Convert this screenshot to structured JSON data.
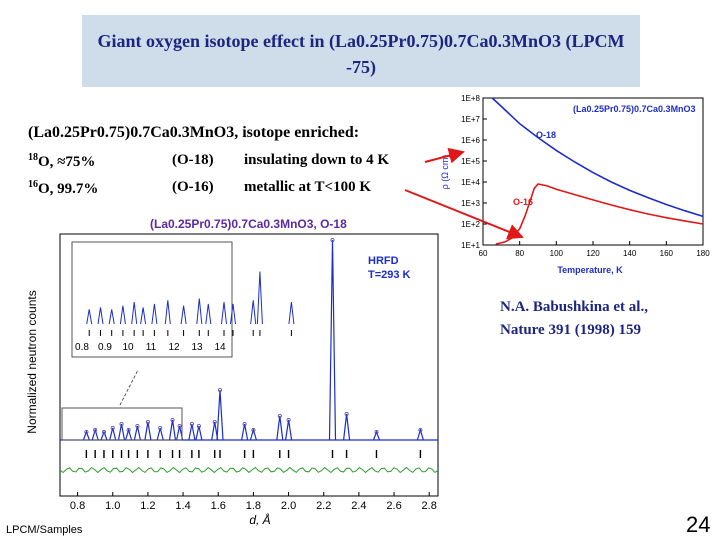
{
  "slide": {
    "title": "Giant oxygen isotope effect in (La0.25Pr0.75)0.7Ca0.3MnO3 (LPCM -75)",
    "compound_line": "(La0.25Pr0.75)0.7Ca0.3MnO3, isotope enriched:",
    "rows": [
      {
        "isotope_mass": "18",
        "isotope_element": "O,",
        "enrichment": "≈75%",
        "label": "(O-18)",
        "behavior": "insulating down to 4 K"
      },
      {
        "isotope_mass": "16",
        "isotope_element": "O,",
        "enrichment": "99.7%",
        "label": "(O-16)",
        "behavior": "metallic at T<100 K"
      }
    ],
    "reference": [
      "N.A. Babushkina et al.,",
      "Nature 391 (1998) 159"
    ],
    "footer": "LPCM/Samples",
    "page_number": "24"
  },
  "chart_data": [
    {
      "type": "line",
      "title": "(La0.25Pr0.75)0.7Ca0.3MnO3",
      "xlabel": "Temperature, K",
      "ylabel": "ρ (Ω cm)",
      "xlim": [
        60,
        180
      ],
      "ylim_log10": [
        1,
        8
      ],
      "x_ticks": [
        "60",
        "80",
        "100",
        "120",
        "140",
        "160",
        "180"
      ],
      "y_ticks": [
        "1E+1",
        "1E+2",
        "1E+3",
        "1E+4",
        "1E+5",
        "1E+6",
        "1E+7",
        "1E+8"
      ],
      "scale": "log-y",
      "series": [
        {
          "name": "O-18",
          "color": "#1c2ec8",
          "x": [
            65,
            70,
            80,
            90,
            100,
            110,
            120,
            130,
            140,
            150,
            160,
            170,
            180
          ],
          "y": [
            100000000.0,
            40000000.0,
            6000000.0,
            1300000.0,
            320000.0,
            90000.0,
            28000.0,
            10000.0,
            4000.0,
            1800.0,
            850,
            430,
            230
          ]
        },
        {
          "name": "O-16",
          "color": "#e01818",
          "x": [
            67,
            72,
            76,
            80,
            83,
            86,
            88,
            90,
            95,
            100,
            110,
            120,
            130,
            140,
            150,
            160,
            170,
            180
          ],
          "y": [
            11,
            14,
            22,
            60,
            250,
            1500,
            5000,
            8000,
            6500,
            4500,
            2500,
            1400,
            800,
            480,
            300,
            200,
            140,
            100
          ]
        }
      ]
    },
    {
      "type": "scatter",
      "title": "(La0.25Pr0.75)0.7Ca0.3MnO3, O-18",
      "annotation": [
        "HRFD",
        "T=293 K"
      ],
      "xlabel": "d, Å",
      "ylabel": "Normalized neutron counts",
      "xlim": [
        0.7,
        2.85
      ],
      "x_ticks": [
        "0.8",
        "1.0",
        "1.2",
        "1.4",
        "1.6",
        "1.8",
        "2.0",
        "2.2",
        "2.4",
        "2.6",
        "2.8"
      ],
      "inset_x_ticks": [
        "0.8",
        "0.9",
        "10",
        "11",
        "12",
        "13",
        "14"
      ],
      "peaks_d": [
        0.85,
        0.9,
        0.95,
        1.0,
        1.05,
        1.09,
        1.14,
        1.2,
        1.27,
        1.34,
        1.38,
        1.45,
        1.49,
        1.58,
        1.61,
        1.75,
        1.8,
        1.95,
        2.0,
        2.25,
        2.33,
        2.5,
        2.75
      ],
      "peaks_rel": [
        0.04,
        0.05,
        0.04,
        0.06,
        0.08,
        0.05,
        0.07,
        0.09,
        0.06,
        0.1,
        0.07,
        0.08,
        0.07,
        0.09,
        0.25,
        0.08,
        0.05,
        0.12,
        0.1,
        1.0,
        0.13,
        0.04,
        0.05
      ],
      "series": [
        {
          "name": "observed",
          "color": "#5a4aa8"
        },
        {
          "name": "fit",
          "color": "#1c2ec8"
        },
        {
          "name": "difference",
          "color": "#2e9a2e"
        }
      ]
    }
  ]
}
